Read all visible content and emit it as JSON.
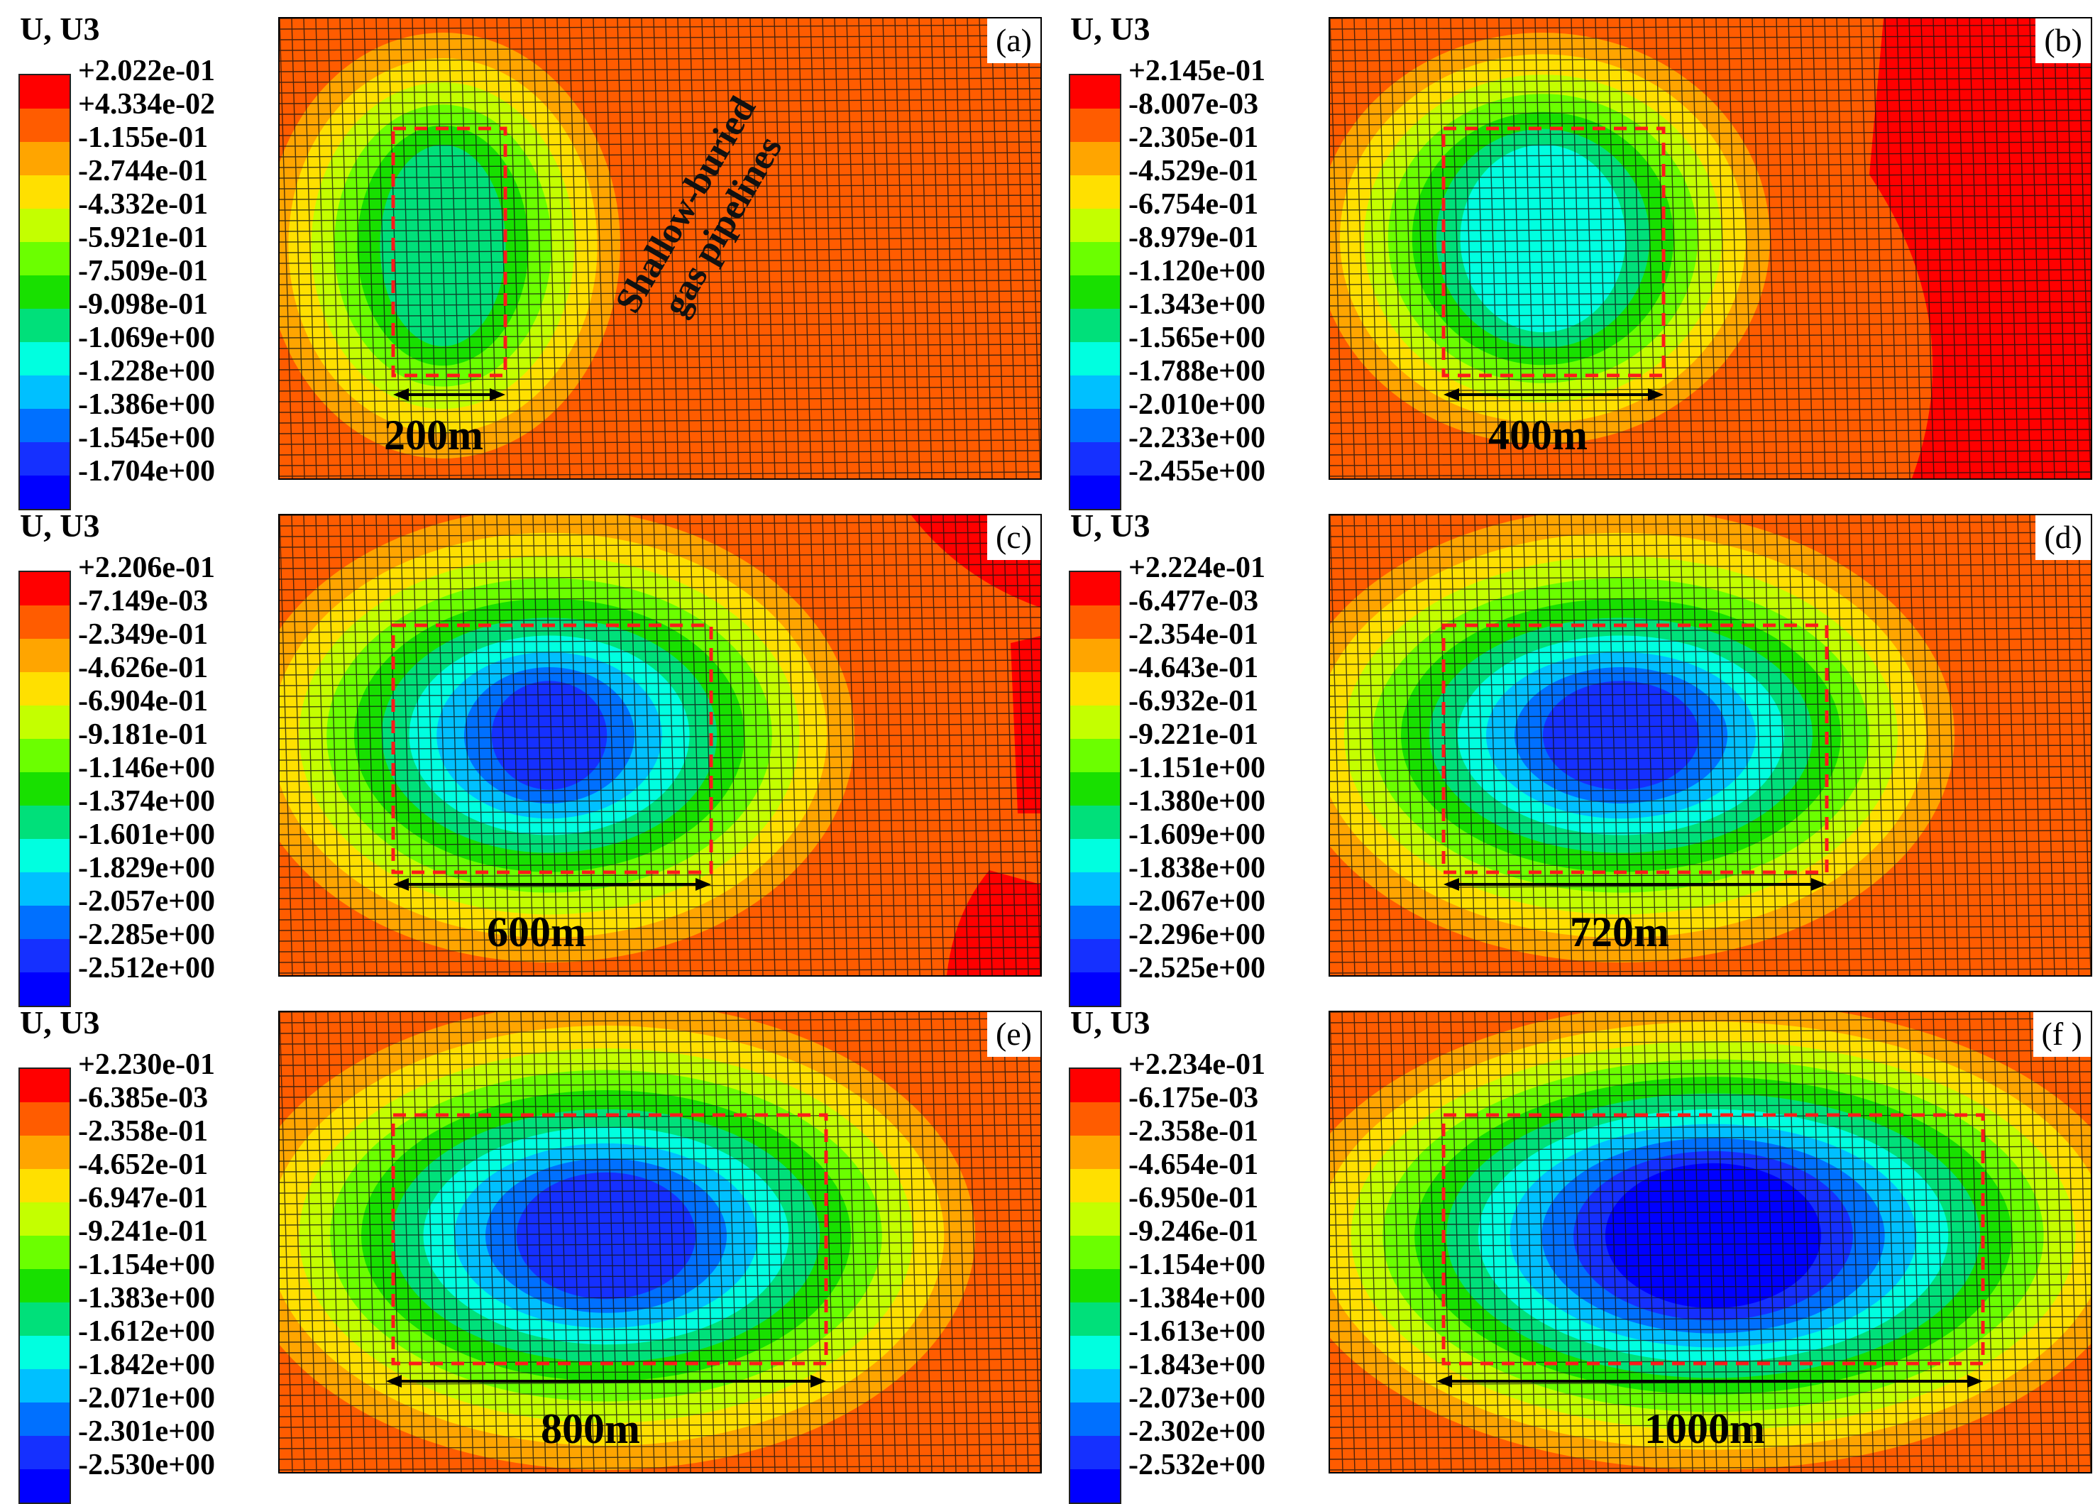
{
  "legend_colors": [
    "#ff0000",
    "#ff5c00",
    "#ffa500",
    "#ffe000",
    "#c4ff00",
    "#6bff00",
    "#18e000",
    "#00e07a",
    "#00ffe0",
    "#00c0ff",
    "#0070ff",
    "#1530ff",
    "#0000ff"
  ],
  "panels": [
    {
      "id": "a",
      "letter": "(a)",
      "legend_title": "U, U3",
      "dimension": "200m",
      "pipeline_label_line1": "Shallow-buried",
      "pipeline_label_line2": "gas pipelines",
      "legend_values": [
        "+2.022e-01",
        "+4.334e-02",
        "-1.155e-01",
        "-2.744e-01",
        "-4.332e-01",
        "-5.921e-01",
        "-7.509e-01",
        "-9.098e-01",
        "-1.069e+00",
        "-1.228e+00",
        "-1.386e+00",
        "-1.545e+00",
        "-1.704e+00"
      ]
    },
    {
      "id": "b",
      "letter": "(b)",
      "legend_title": "U, U3",
      "dimension": "400m",
      "legend_values": [
        "+2.145e-01",
        "-8.007e-03",
        "-2.305e-01",
        "-4.529e-01",
        "-6.754e-01",
        "-8.979e-01",
        "-1.120e+00",
        "-1.343e+00",
        "-1.565e+00",
        "-1.788e+00",
        "-2.010e+00",
        "-2.233e+00",
        "-2.455e+00"
      ]
    },
    {
      "id": "c",
      "letter": "(c)",
      "legend_title": "U, U3",
      "dimension": "600m",
      "legend_values": [
        "+2.206e-01",
        "-7.149e-03",
        "-2.349e-01",
        "-4.626e-01",
        "-6.904e-01",
        "-9.181e-01",
        "-1.146e+00",
        "-1.374e+00",
        "-1.601e+00",
        "-1.829e+00",
        "-2.057e+00",
        "-2.285e+00",
        "-2.512e+00"
      ]
    },
    {
      "id": "d",
      "letter": "(d)",
      "legend_title": "U, U3",
      "dimension": "720m",
      "legend_values": [
        "+2.224e-01",
        "-6.477e-03",
        "-2.354e-01",
        "-4.643e-01",
        "-6.932e-01",
        "-9.221e-01",
        "-1.151e+00",
        "-1.380e+00",
        "-1.609e+00",
        "-1.838e+00",
        "-2.067e+00",
        "-2.296e+00",
        "-2.525e+00"
      ]
    },
    {
      "id": "e",
      "letter": "(e)",
      "legend_title": "U, U3",
      "dimension": "800m",
      "legend_values": [
        "+2.230e-01",
        "-6.385e-03",
        "-2.358e-01",
        "-4.652e-01",
        "-6.947e-01",
        "-9.241e-01",
        "-1.154e+00",
        "-1.383e+00",
        "-1.612e+00",
        "-1.842e+00",
        "-2.071e+00",
        "-2.301e+00",
        "-2.530e+00"
      ]
    },
    {
      "id": "f",
      "letter": "(f )",
      "legend_title": "U, U3",
      "dimension": "1000m",
      "legend_values": [
        "+2.234e-01",
        "-6.175e-03",
        "-2.358e-01",
        "-4.654e-01",
        "-6.950e-01",
        "-9.246e-01",
        "-1.154e+00",
        "-1.384e+00",
        "-1.613e+00",
        "-1.843e+00",
        "-2.073e+00",
        "-2.302e+00",
        "-2.532e+00"
      ]
    }
  ]
}
